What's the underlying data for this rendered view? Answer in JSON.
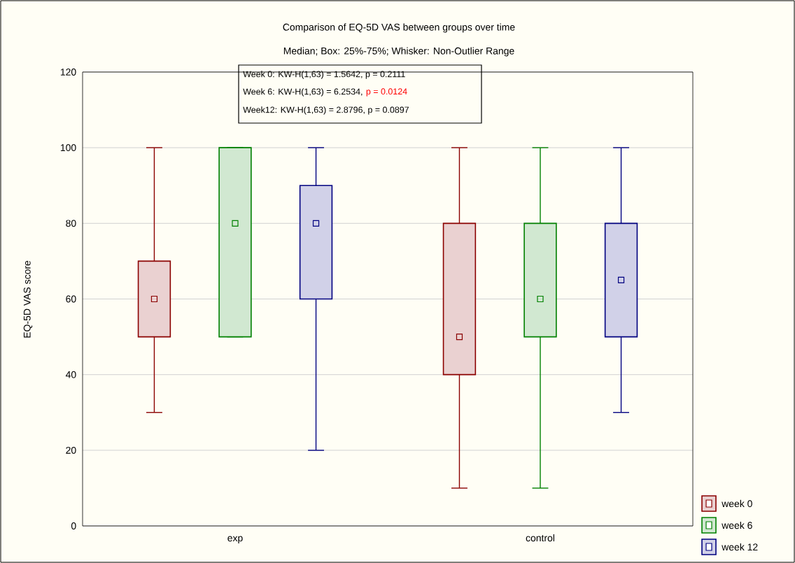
{
  "chart_data": {
    "type": "box",
    "title": "Comparison of EQ-5D VAS between groups over time",
    "subtitle": "Median; Box: 25%-75%; Whisker: Non-Outlier Range",
    "ylabel": "EQ-5D VAS score",
    "categories": [
      "exp",
      "control"
    ],
    "series": [
      {
        "name": "week 0",
        "color": "#8b0000",
        "boxes": [
          {
            "low": 30,
            "q1": 50,
            "median": 60,
            "q3": 70,
            "high": 100
          },
          {
            "low": 10,
            "q1": 40,
            "median": 50,
            "q3": 80,
            "high": 100
          }
        ]
      },
      {
        "name": "week 6",
        "color": "#008000",
        "boxes": [
          {
            "low": 50,
            "q1": 50,
            "median": 80,
            "q3": 100,
            "high": 100
          },
          {
            "low": 10,
            "q1": 50,
            "median": 60,
            "q3": 80,
            "high": 100
          }
        ]
      },
      {
        "name": "week 12",
        "color": "#000080",
        "boxes": [
          {
            "low": 20,
            "q1": 60,
            "median": 80,
            "q3": 90,
            "high": 100
          },
          {
            "low": 30,
            "q1": 50,
            "median": 65,
            "q3": 80,
            "high": 100
          }
        ]
      }
    ],
    "annotations": [
      "Week 0:  KW-H(1,63) = 1.5642, p = 0.2111",
      "Week 6:  KW-H(1,63) = 6.2534,",
      "p = 0.0124",
      "Week12: KW-H(1,63) = 2.8796, p = 0.0897"
    ],
    "ylim": [
      0,
      120
    ],
    "yticks": [
      0,
      20,
      40,
      60,
      80,
      100,
      120
    ],
    "grid": "y",
    "legend": "bottom right",
    "marker": "square"
  }
}
